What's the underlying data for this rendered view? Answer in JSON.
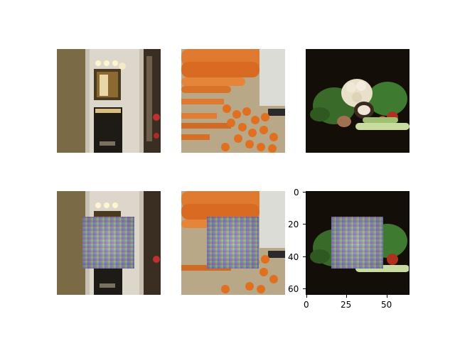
{
  "figure": {
    "grid": "2x3",
    "images_top": [
      "hallway-photo",
      "carrots-photo",
      "vegetables-photo"
    ],
    "images_bottom": [
      "hallway-photo-with-patch",
      "carrots-photo-with-patch",
      "vegetables-photo-with-patch"
    ]
  },
  "axes": {
    "y_ticks": [
      "0",
      "20",
      "40",
      "60"
    ],
    "x_ticks": [
      "0",
      "25",
      "50"
    ]
  }
}
